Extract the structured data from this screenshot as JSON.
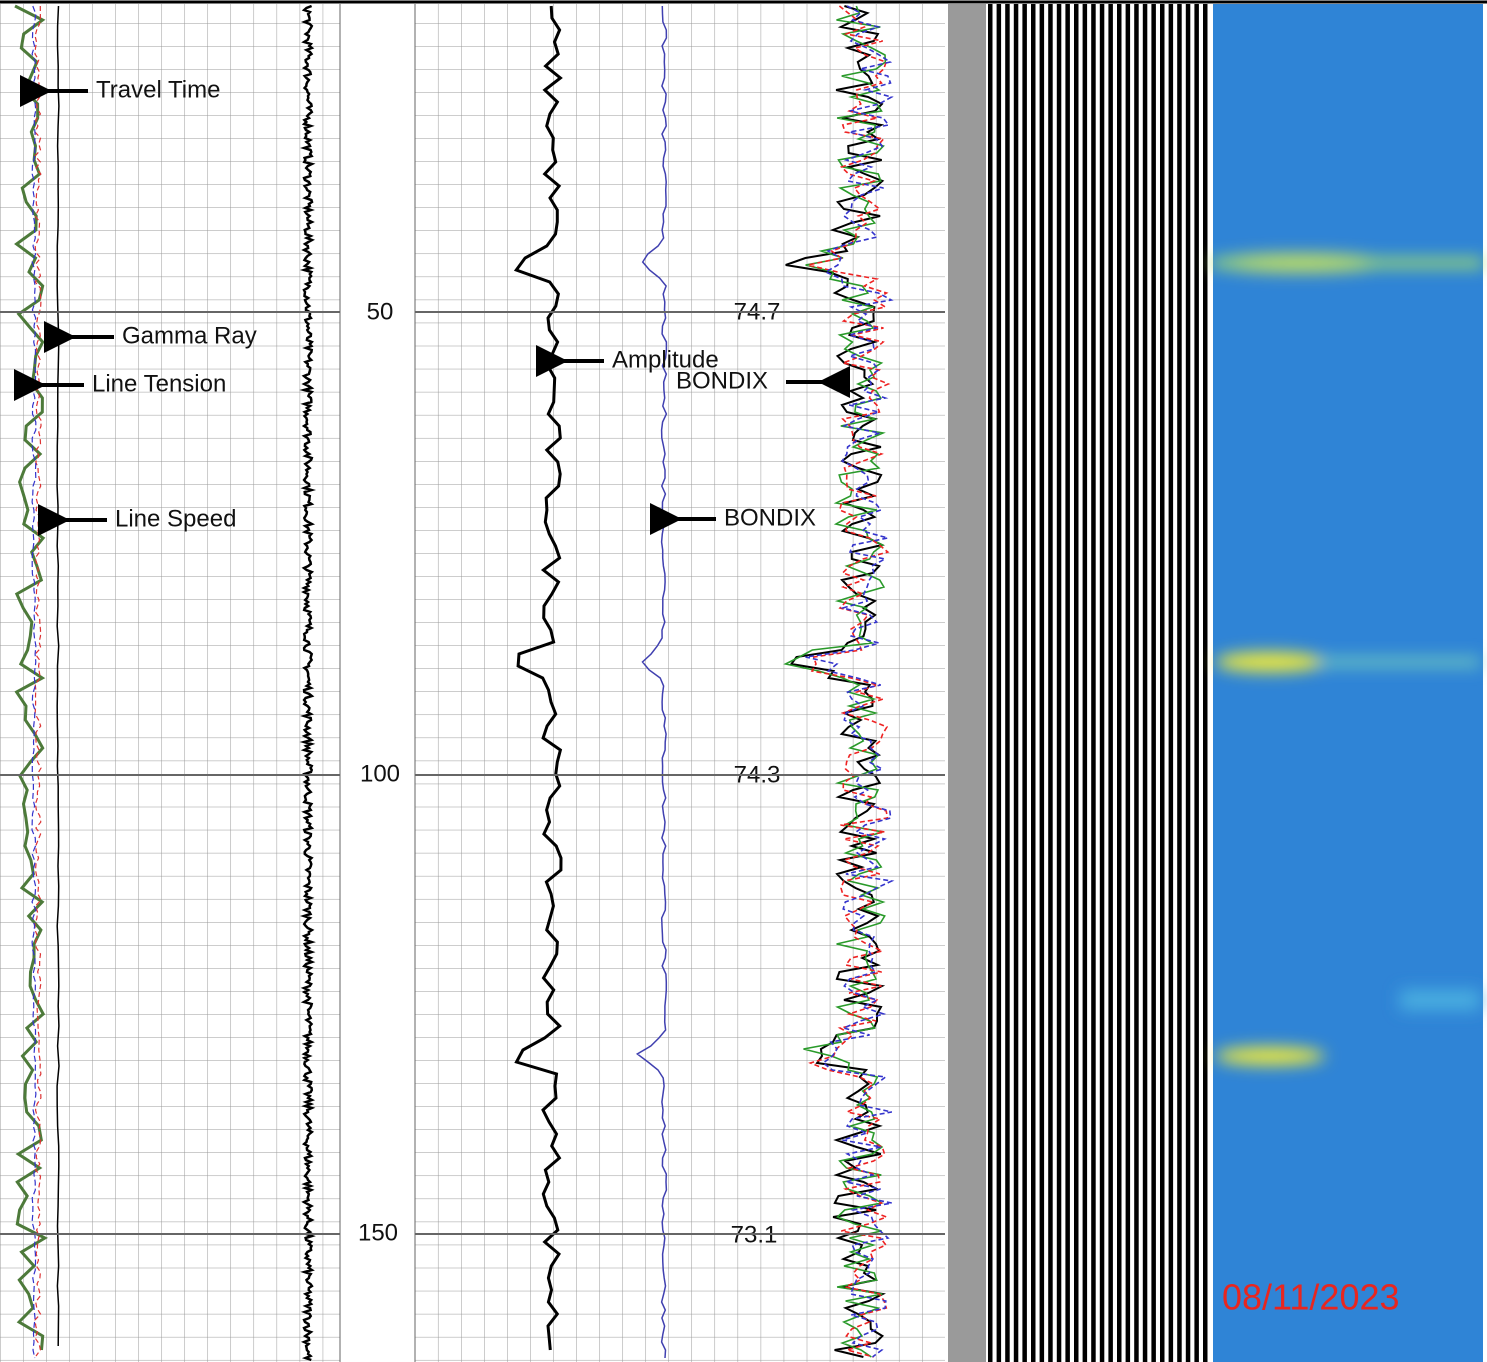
{
  "track1": {
    "labels": [
      "Travel Time",
      "Gamma Ray",
      "Line Tension",
      "Line Speed"
    ]
  },
  "depth_track": {
    "depths": [
      50,
      100,
      150
    ]
  },
  "track3": {
    "labels": [
      "Amplitude",
      "BONDIX",
      "BONDIX"
    ],
    "readings": [
      74.7,
      74.3,
      73.1
    ]
  },
  "date": "08/11/2023"
}
